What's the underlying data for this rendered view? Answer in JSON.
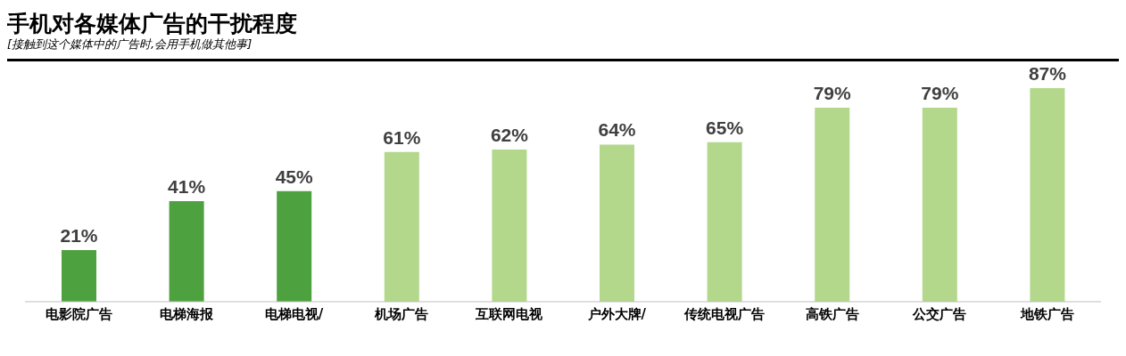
{
  "chart_data": {
    "type": "bar",
    "title": "手机对各媒体广告的干扰程度",
    "subtitle": "[接触到这个媒体中的广告时,会用手机做其他事]",
    "categories": [
      "电影院广告",
      "电梯海报",
      "电梯电视/",
      "机场广告",
      "互联网电视",
      "户外大牌/",
      "传统电视广告",
      "高铁广告",
      "公交广告",
      "地铁广告"
    ],
    "values": [
      21,
      41,
      45,
      61,
      62,
      64,
      65,
      79,
      79,
      87
    ],
    "colors": [
      "#4ea13f",
      "#4ea13f",
      "#4ea13f",
      "#b3d88c",
      "#b3d88c",
      "#b3d88c",
      "#b3d88c",
      "#b3d88c",
      "#b3d88c",
      "#b3d88c"
    ],
    "value_labels": [
      "21%",
      "41%",
      "45%",
      "61%",
      "62%",
      "64%",
      "65%",
      "79%",
      "79%",
      "87%"
    ]
  }
}
